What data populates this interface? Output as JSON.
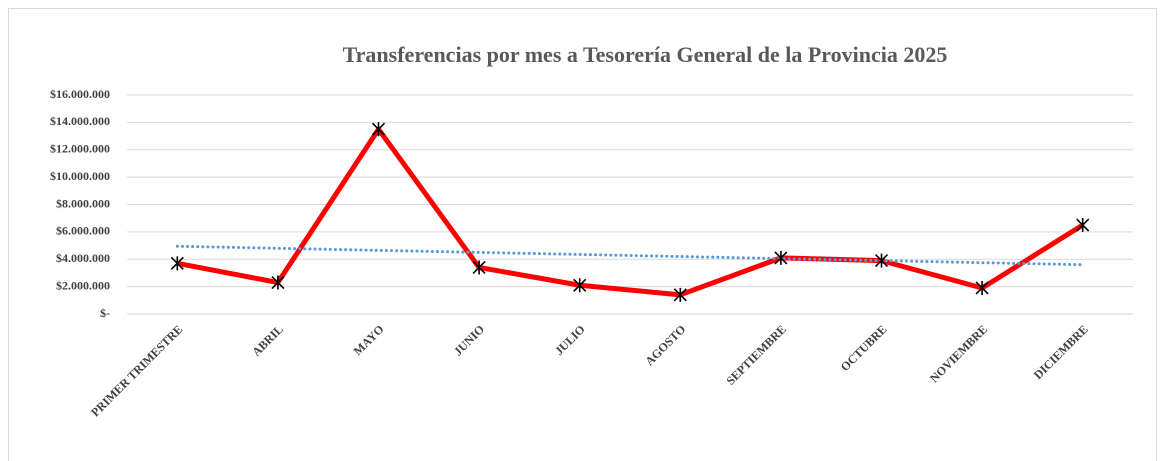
{
  "chart_data": {
    "type": "line",
    "title": "Transferencias por mes a Tesorería General de la Provincia 2025",
    "categories": [
      "PRIMER TRIMESTRE",
      "ABRIL",
      "MAYO",
      "JUNIO",
      "JULIO",
      "AGOSTO",
      "SEPTIEMBRE",
      "OCTUBRE",
      "NOVIEMBRE",
      "DICIEMBRE"
    ],
    "series": [
      {
        "color": "#ff0000",
        "values": [
          3700000,
          2300000,
          13500000,
          3400000,
          2100000,
          1400000,
          4100000,
          3900000,
          1900000,
          6500000
        ]
      }
    ],
    "trendline": {
      "color": "#5b9bd5",
      "values": [
        4950000,
        4800000,
        4650000,
        4500000,
        4350000,
        4200000,
        4050000,
        3900000,
        3750000,
        3600000
      ]
    },
    "ylim": [
      0,
      16000000
    ],
    "yticks": [
      {
        "value": 0,
        "label": "$-"
      },
      {
        "value": 2000000,
        "label": "$2.000.000"
      },
      {
        "value": 4000000,
        "label": "$4.000.000"
      },
      {
        "value": 6000000,
        "label": "$6.000.000"
      },
      {
        "value": 8000000,
        "label": "$8.000.000"
      },
      {
        "value": 10000000,
        "label": "$10.000.000"
      },
      {
        "value": 12000000,
        "label": "$12.000.000"
      },
      {
        "value": 14000000,
        "label": "$14.000.000"
      },
      {
        "value": 16000000,
        "label": "$16.000.000"
      }
    ],
    "grid": true
  }
}
